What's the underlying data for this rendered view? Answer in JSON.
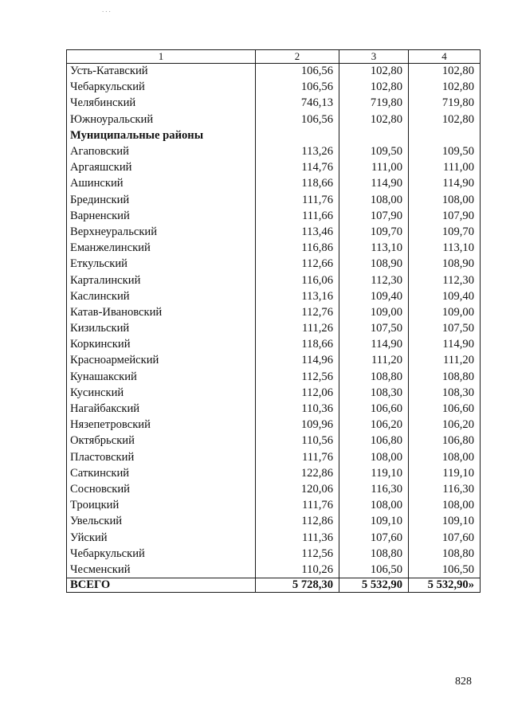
{
  "page": {
    "number": "828"
  },
  "table": {
    "column_headers": [
      "1",
      "2",
      "3",
      "4"
    ],
    "rows": [
      {
        "name": "Усть-Катавский",
        "col2": "106,56",
        "col3": "102,80",
        "col4": "102,80"
      },
      {
        "name": "Чебаркульский",
        "col2": "106,56",
        "col3": "102,80",
        "col4": "102,80"
      },
      {
        "name": "Челябинский",
        "col2": "746,13",
        "col3": "719,80",
        "col4": "719,80"
      },
      {
        "name": "Южноуральский",
        "col2": "106,56",
        "col3": "102,80",
        "col4": "102,80"
      },
      {
        "name": "Муниципальные районы",
        "type": "section",
        "col2": "",
        "col3": "",
        "col4": ""
      },
      {
        "name": "Агаповский",
        "col2": "113,26",
        "col3": "109,50",
        "col4": "109,50"
      },
      {
        "name": "Аргаяшский",
        "col2": "114,76",
        "col3": "111,00",
        "col4": "111,00"
      },
      {
        "name": "Ашинский",
        "col2": "118,66",
        "col3": "114,90",
        "col4": "114,90"
      },
      {
        "name": "Брединский",
        "col2": "111,76",
        "col3": "108,00",
        "col4": "108,00"
      },
      {
        "name": "Варненский",
        "col2": "111,66",
        "col3": "107,90",
        "col4": "107,90"
      },
      {
        "name": "Верхнеуральский",
        "col2": "113,46",
        "col3": "109,70",
        "col4": "109,70"
      },
      {
        "name": "Еманжелинский",
        "col2": "116,86",
        "col3": "113,10",
        "col4": "113,10"
      },
      {
        "name": "Еткульский",
        "col2": "112,66",
        "col3": "108,90",
        "col4": "108,90"
      },
      {
        "name": "Карталинский",
        "col2": "116,06",
        "col3": "112,30",
        "col4": "112,30"
      },
      {
        "name": "Каслинский",
        "col2": "113,16",
        "col3": "109,40",
        "col4": "109,40"
      },
      {
        "name": "Катав-Ивановский",
        "col2": "112,76",
        "col3": "109,00",
        "col4": "109,00"
      },
      {
        "name": "Кизильский",
        "col2": "111,26",
        "col3": "107,50",
        "col4": "107,50"
      },
      {
        "name": "Коркинский",
        "col2": "118,66",
        "col3": "114,90",
        "col4": "114,90"
      },
      {
        "name": "Красноармейский",
        "col2": "114,96",
        "col3": "111,20",
        "col4": "111,20"
      },
      {
        "name": "Кунашакский",
        "col2": "112,56",
        "col3": "108,80",
        "col4": "108,80"
      },
      {
        "name": "Кусинский",
        "col2": "112,06",
        "col3": "108,30",
        "col4": "108,30"
      },
      {
        "name": "Нагайбакский",
        "col2": "110,36",
        "col3": "106,60",
        "col4": "106,60"
      },
      {
        "name": "Нязепетровский",
        "col2": "109,96",
        "col3": "106,20",
        "col4": "106,20"
      },
      {
        "name": "Октябрьский",
        "col2": "110,56",
        "col3": "106,80",
        "col4": "106,80"
      },
      {
        "name": "Пластовский",
        "col2": "111,76",
        "col3": "108,00",
        "col4": "108,00"
      },
      {
        "name": "Саткинский",
        "col2": "122,86",
        "col3": "119,10",
        "col4": "119,10"
      },
      {
        "name": "Сосновский",
        "col2": "120,06",
        "col3": "116,30",
        "col4": "116,30"
      },
      {
        "name": "Троицкий",
        "col2": "111,76",
        "col3": "108,00",
        "col4": "108,00"
      },
      {
        "name": "Увельский",
        "col2": "112,86",
        "col3": "109,10",
        "col4": "109,10"
      },
      {
        "name": "Уйский",
        "col2": "111,36",
        "col3": "107,60",
        "col4": "107,60"
      },
      {
        "name": "Чебаркульский",
        "col2": "112,56",
        "col3": "108,80",
        "col4": "108,80"
      },
      {
        "name": "Чесменский",
        "col2": "110,26",
        "col3": "106,50",
        "col4": "106,50"
      }
    ],
    "total_row": {
      "name": "ВСЕГО",
      "col2": "5 728,30",
      "col3": "5 532,90",
      "col4": "5 532,90»"
    }
  },
  "artifact": {
    "dots": "..."
  }
}
